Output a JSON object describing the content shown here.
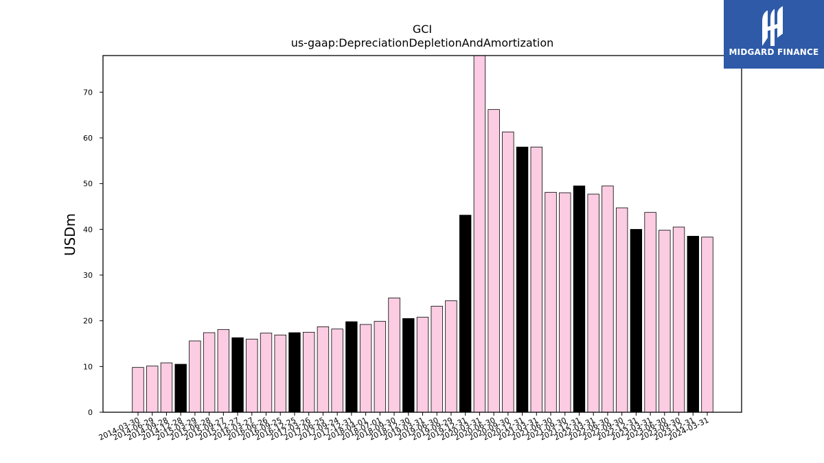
{
  "chart_data": {
    "type": "bar",
    "title": "GCI",
    "subtitle": "us-gaap:DepreciationDepletionAndAmortization",
    "xlabel": "",
    "ylabel": "USDm",
    "ylim": [
      0,
      78
    ],
    "yticks": [
      0,
      10,
      20,
      30,
      40,
      50,
      60,
      70
    ],
    "grid": false,
    "colors": {
      "quarter": "#fbcce2",
      "year_end": "#000000",
      "edge": "#000000"
    },
    "categories": [
      "2014-03-30",
      "2014-06-29",
      "2014-09-28",
      "2014-12-28",
      "2015-03-29",
      "2015-06-28",
      "2015-09-27",
      "2015-12-27",
      "2016-03-27",
      "2016-06-26",
      "2016-09-25",
      "2016-12-25",
      "2017-03-26",
      "2017-06-25",
      "2017-09-24",
      "2017-12-31",
      "2018-04-01",
      "2018-07-01",
      "2018-09-30",
      "2018-12-30",
      "2019-03-31",
      "2019-06-30",
      "2019-09-29",
      "2019-12-31",
      "2020-03-31",
      "2020-06-30",
      "2020-09-30",
      "2020-12-31",
      "2021-03-31",
      "2021-06-30",
      "2021-09-30",
      "2021-12-31",
      "2022-03-31",
      "2022-06-30",
      "2022-09-30",
      "2022-12-31",
      "2023-03-31",
      "2023-06-30",
      "2023-09-30",
      "2023-12-31",
      "2024-03-31"
    ],
    "values": [
      9.8,
      10.1,
      10.8,
      10.5,
      15.6,
      17.4,
      18.1,
      16.3,
      16.0,
      17.3,
      16.9,
      17.4,
      17.5,
      18.7,
      18.2,
      19.8,
      19.2,
      19.9,
      25.0,
      20.5,
      20.8,
      23.2,
      24.4,
      43.1,
      78.0,
      66.2,
      61.3,
      58.0,
      58.0,
      48.1,
      48.0,
      49.5,
      47.7,
      49.5,
      44.7,
      40.0,
      43.7,
      39.8,
      40.5,
      38.5,
      38.3
    ],
    "highlight": [
      false,
      false,
      false,
      true,
      false,
      false,
      false,
      true,
      false,
      false,
      false,
      true,
      false,
      false,
      false,
      true,
      false,
      false,
      false,
      true,
      false,
      false,
      false,
      true,
      false,
      false,
      false,
      true,
      false,
      false,
      false,
      true,
      false,
      false,
      false,
      true,
      false,
      false,
      false,
      true,
      false
    ]
  },
  "logo": {
    "text": "MIDGARD FINANCE",
    "icon": "midgard-logo-icon"
  }
}
